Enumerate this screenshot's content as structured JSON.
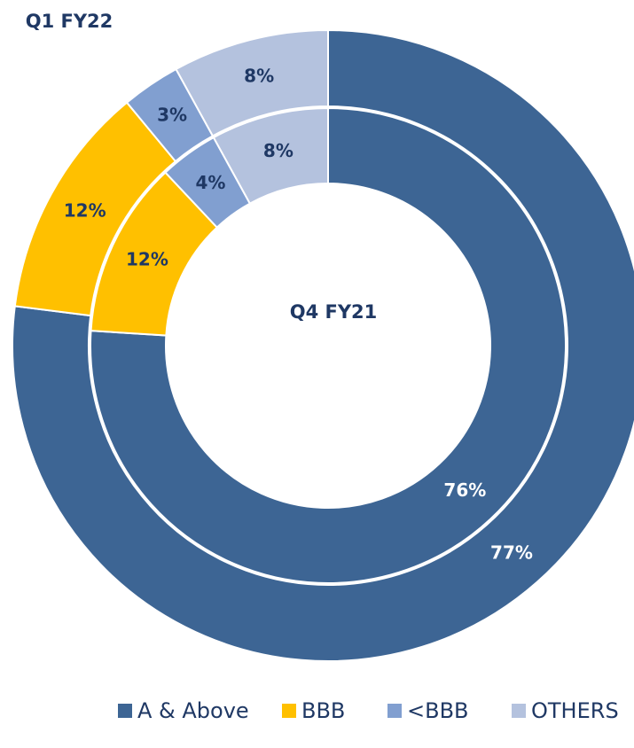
{
  "chart_data": {
    "type": "donut",
    "categories": [
      "A & Above",
      "BBB",
      "<BBB",
      "OTHERS"
    ],
    "colors": [
      "#3d6594",
      "#ffc000",
      "#819fd0",
      "#b4c2de"
    ],
    "label_colors": [
      "#ffffff",
      "#1f3864",
      "#1f3864",
      "#1f3864"
    ],
    "series": [
      {
        "name": "Q1 FY22",
        "values": [
          77,
          12,
          3,
          8
        ],
        "value_labels": [
          "77%",
          "12%",
          "3%",
          "8%"
        ]
      },
      {
        "name": "Q4 FY21",
        "values": [
          76,
          12,
          4,
          8
        ],
        "value_labels": [
          "76%",
          "12%",
          "4%",
          "8%"
        ]
      }
    ]
  }
}
